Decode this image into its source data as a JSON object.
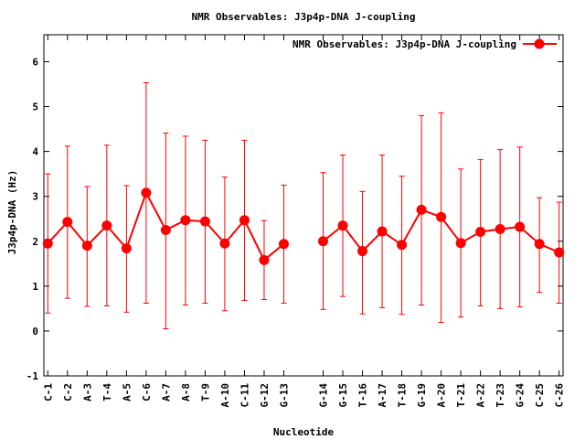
{
  "chart_data": {
    "type": "line",
    "title": "NMR Observables: J3p4p-DNA J-coupling",
    "xlabel": "Nucleotide",
    "ylabel": "J3p4p-DNA (Hz)",
    "ylim": [
      -1,
      6.6
    ],
    "yticks": [
      -1,
      0,
      1,
      2,
      3,
      4,
      5,
      6
    ],
    "grid": false,
    "legend_position": "top-right",
    "series": [
      {
        "name": "NMR Observables: J3p4p-DNA J-coupling",
        "color": "#ff0000",
        "segments": [
          {
            "categories": [
              "C-1",
              "C-2",
              "A-3",
              "T-4",
              "A-5",
              "C-6",
              "A-7",
              "A-8",
              "T-9",
              "A-10",
              "C-11",
              "G-12",
              "G-13"
            ],
            "x": [
              1,
              2,
              3,
              4,
              5,
              6,
              7,
              8,
              9,
              10,
              11,
              12,
              13
            ],
            "values": [
              1.95,
              2.43,
              1.9,
              2.35,
              1.84,
              3.08,
              2.25,
              2.47,
              2.44,
              1.95,
              2.47,
              1.58,
              1.94
            ],
            "err_low": [
              0.4,
              0.73,
              0.55,
              0.56,
              0.42,
              0.62,
              0.05,
              0.58,
              0.62,
              0.45,
              0.68,
              0.7,
              0.62
            ],
            "err_high": [
              3.5,
              4.12,
              3.22,
              4.14,
              3.24,
              5.53,
              4.41,
              4.34,
              4.25,
              3.43,
              4.25,
              2.46,
              3.25
            ]
          },
          {
            "categories": [
              "G-14",
              "G-15",
              "T-16",
              "A-17",
              "T-18",
              "G-19",
              "A-20",
              "T-21",
              "A-22",
              "T-23",
              "G-24",
              "C-25",
              "C-26"
            ],
            "x": [
              15,
              16,
              17,
              18,
              19,
              20,
              21,
              22,
              23,
              24,
              25,
              26,
              27
            ],
            "values": [
              2.0,
              2.35,
              1.78,
              2.22,
              1.92,
              2.7,
              2.54,
              1.96,
              2.21,
              2.27,
              2.32,
              1.94,
              1.75
            ],
            "err_low": [
              0.48,
              0.77,
              0.38,
              0.52,
              0.37,
              0.58,
              0.19,
              0.31,
              0.56,
              0.5,
              0.54,
              0.86,
              0.62
            ],
            "err_high": [
              3.53,
              3.92,
              3.11,
              3.92,
              3.45,
              4.8,
              4.86,
              3.61,
              3.82,
              4.04,
              4.1,
              2.97,
              2.87
            ]
          }
        ]
      }
    ]
  }
}
